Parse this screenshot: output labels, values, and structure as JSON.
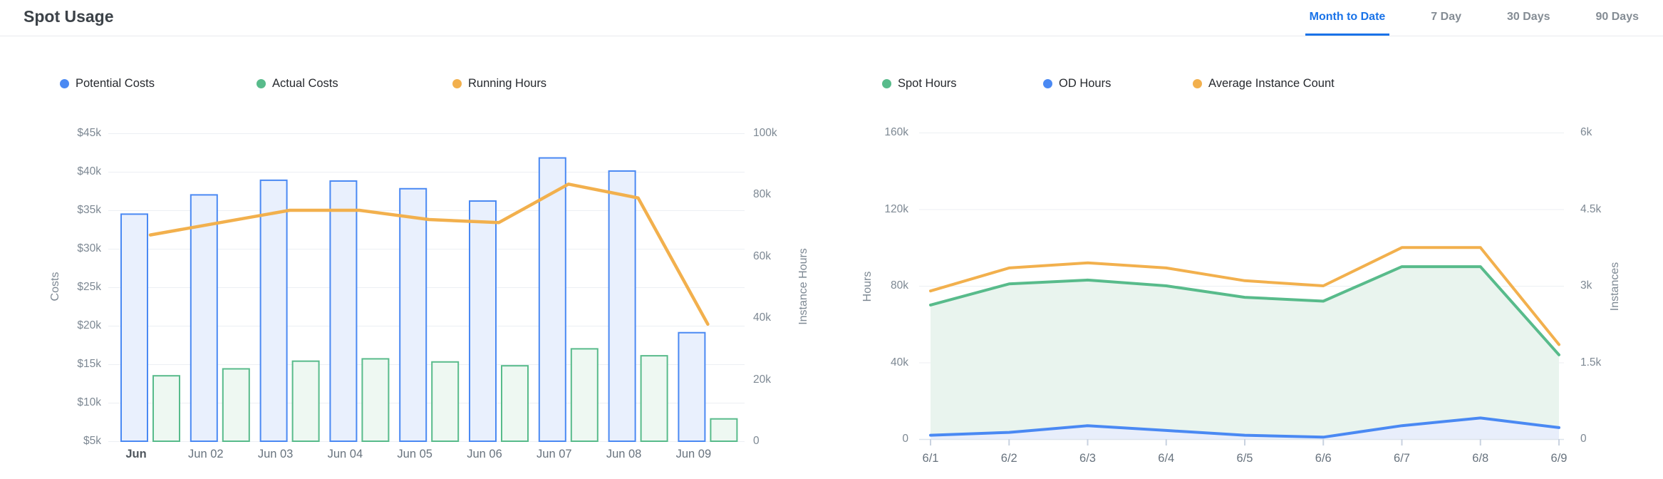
{
  "header": {
    "title": "Spot Usage",
    "tabs": [
      {
        "label": "Month to Date",
        "active": true
      },
      {
        "label": "7 Day",
        "active": false
      },
      {
        "label": "30 Days",
        "active": false
      },
      {
        "label": "90 Days",
        "active": false
      }
    ]
  },
  "colors": {
    "blue": "#4A89F3",
    "blue_fill": "#E9F0FD",
    "green": "#58BB8B",
    "green_fill": "#EEF8F2",
    "orange": "#F2B04D",
    "area_green": "#E9F4EE",
    "area_blue": "#E8EEFB",
    "grid": "#ECEFF3",
    "axis_line": "#DDE3EB",
    "tick_mark": "#C9D2E0",
    "tab_active": "#1A73E8"
  },
  "chart_data": [
    {
      "type": "bar",
      "title": "Costs and Running Hours by Day",
      "categories": [
        "Jun",
        "Jun 02",
        "Jun 03",
        "Jun 04",
        "Jun 05",
        "Jun 06",
        "Jun 07",
        "Jun 08",
        "Jun 09"
      ],
      "series": [
        {
          "name": "Potential Costs",
          "type": "bar",
          "axis": "left",
          "values": [
            34500,
            37000,
            38900,
            38800,
            37800,
            36200,
            41800,
            40100,
            19100
          ]
        },
        {
          "name": "Actual Costs",
          "type": "bar",
          "axis": "left",
          "values": [
            13500,
            14400,
            15400,
            15700,
            15300,
            14800,
            17000,
            16100,
            7900
          ]
        },
        {
          "name": "Running Hours",
          "type": "line",
          "axis": "right",
          "values": [
            67000,
            71000,
            75000,
            75000,
            72000,
            71000,
            83500,
            79000,
            38000
          ]
        }
      ],
      "left_axis": {
        "label": "Costs",
        "min": 5000,
        "max": 45000,
        "ticks": [
          "$45k",
          "$40k",
          "$35k",
          "$30k",
          "$25k",
          "$20k",
          "$15k",
          "$10k",
          "$5k"
        ]
      },
      "right_axis": {
        "label": "Instance Hours",
        "min": 0,
        "max": 100000,
        "ticks": [
          "100k",
          "80k",
          "60k",
          "40k",
          "20k",
          "0"
        ]
      },
      "grid": true,
      "legend_position": "top"
    },
    {
      "type": "area",
      "title": "Spot and OD Hours by Day",
      "categories": [
        "6/1",
        "6/2",
        "6/3",
        "6/4",
        "6/5",
        "6/6",
        "6/7",
        "6/8",
        "6/9"
      ],
      "series": [
        {
          "name": "Spot Hours",
          "type": "area",
          "axis": "left",
          "values": [
            70000,
            81000,
            83000,
            80000,
            74000,
            72000,
            90000,
            90000,
            44000
          ]
        },
        {
          "name": "OD Hours",
          "type": "area",
          "axis": "left",
          "values": [
            2000,
            3500,
            7000,
            4500,
            2000,
            1000,
            7000,
            11000,
            6000
          ]
        },
        {
          "name": "Average Instance Count",
          "type": "line",
          "axis": "right",
          "values": [
            2900,
            3350,
            3450,
            3350,
            3100,
            3000,
            3750,
            3750,
            1850
          ]
        }
      ],
      "left_axis": {
        "label": "Hours",
        "min": 0,
        "max": 160000,
        "ticks": [
          "160k",
          "120k",
          "80k",
          "40k",
          "0"
        ]
      },
      "right_axis": {
        "label": "Instances",
        "min": 0,
        "max": 6000,
        "ticks": [
          "6k",
          "4.5k",
          "3k",
          "1.5k",
          "0"
        ]
      },
      "grid": true,
      "legend_position": "top"
    }
  ]
}
